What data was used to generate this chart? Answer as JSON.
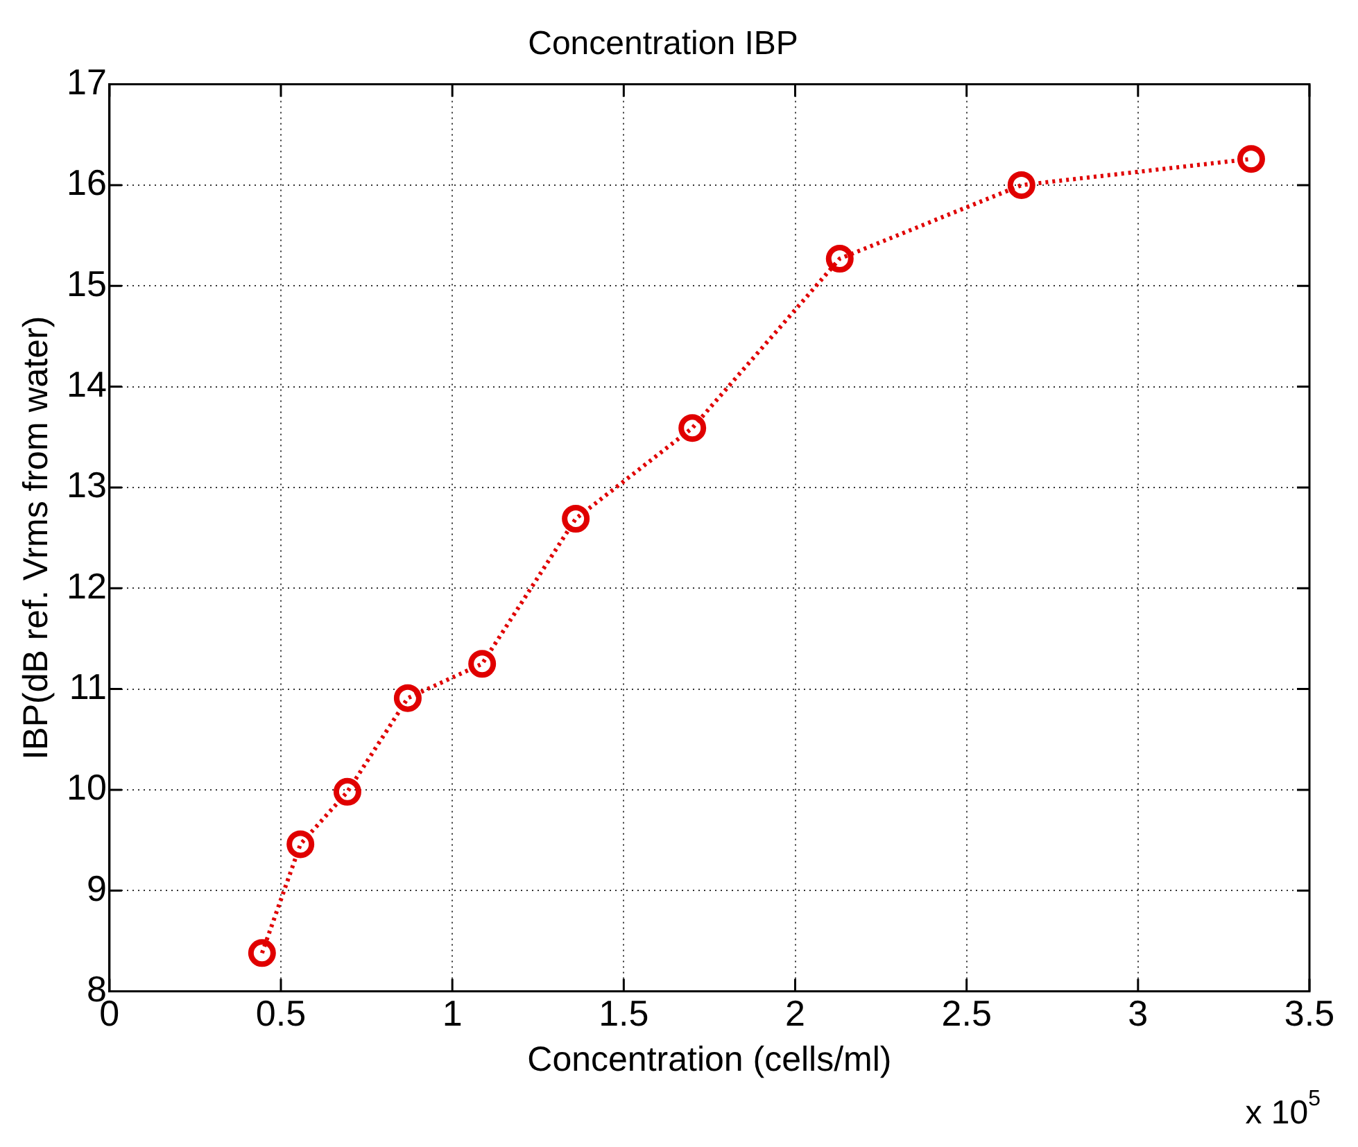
{
  "chart_data": {
    "type": "line",
    "title": "Concentration IBP",
    "xlabel": "Concentration (cells/ml)",
    "ylabel": "IBP(dB ref. Vrms from water)",
    "annotations": [
      "x 10$^{5}$"
    ],
    "x": [
      0.445,
      0.557,
      0.694,
      0.87,
      1.087,
      1.36,
      1.7,
      2.13,
      2.66,
      3.33
    ],
    "series": [
      {
        "color": "#e00000",
        "values": [
          8.38,
          9.46,
          9.98,
          10.91,
          11.25,
          12.69,
          13.59,
          15.27,
          16.0,
          16.26
        ]
      }
    ],
    "xlim": [
      0,
      3.5
    ],
    "xticks": [
      0,
      0.5,
      1,
      1.5,
      2,
      2.5,
      3,
      3.5
    ],
    "ylim": [
      8,
      17
    ],
    "yticks": [
      8,
      9,
      10,
      11,
      12,
      13,
      14,
      15,
      16,
      17
    ],
    "grid": true,
    "legend": false,
    "marker": "circle",
    "line_style": "dotted"
  }
}
